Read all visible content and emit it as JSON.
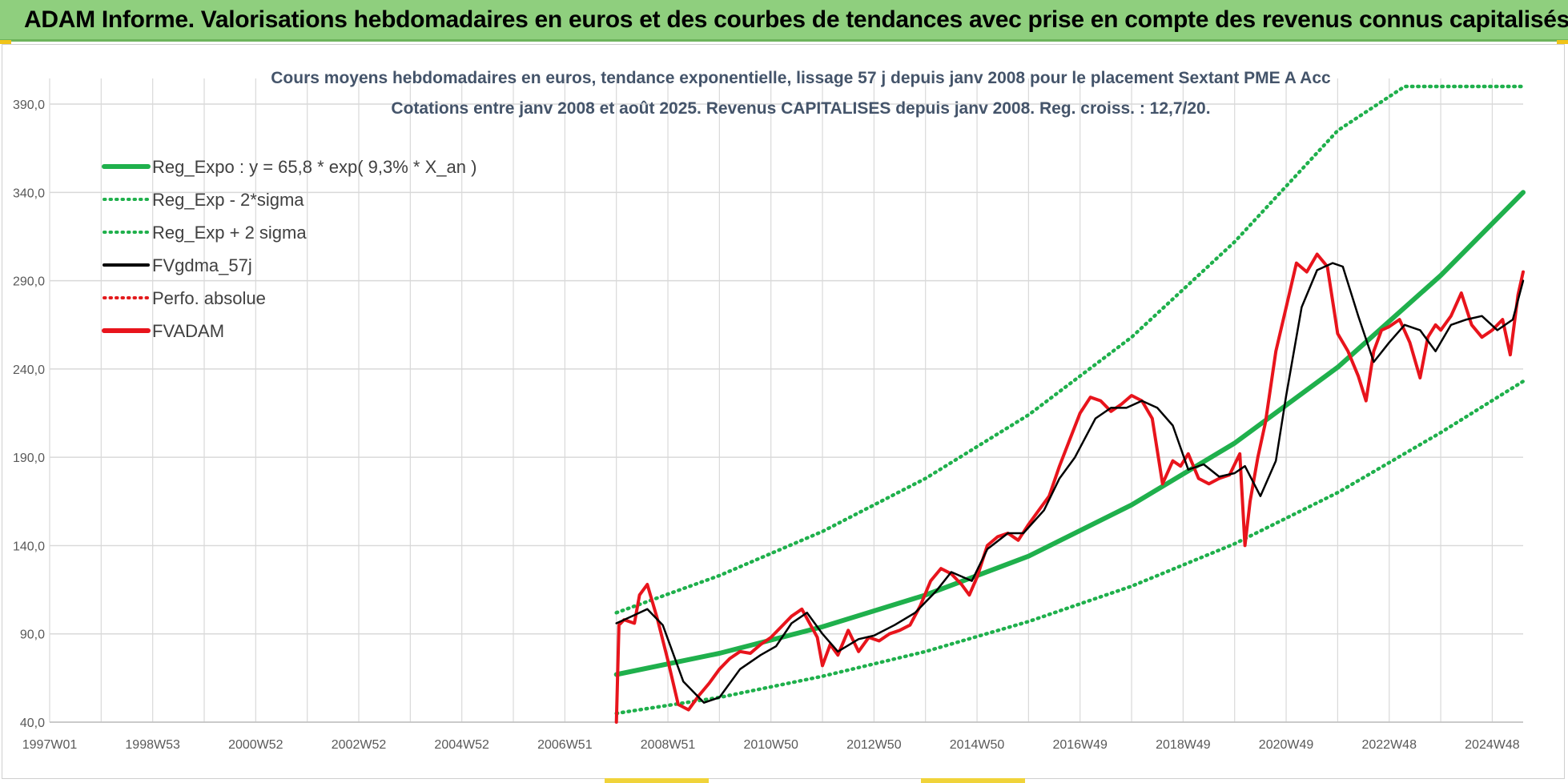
{
  "header": {
    "title": "ADAM Informe. Valorisations hebdomadaires en euros et des courbes de tendances avec prise en compte des revenus connus capitalisés"
  },
  "colors": {
    "header_bg": "#8fcf7e",
    "reg_expo": "#1fb04c",
    "sigma": "#1fb04c",
    "fvgdma": "#000000",
    "perfo": "#e31a1c",
    "fvadam": "#e8141c",
    "grid": "#d9d9d9",
    "title_text": "#44546a"
  },
  "chart_data": {
    "type": "line",
    "title": "Cours moyens hebdomadaires en euros, tendance exponentielle, lissage 57 j depuis janv 2008 pour le placement Sextant PME A Acc",
    "subtitle": "Cotations entre janv 2008 et août 2025. Revenus CAPITALISES depuis janv 2008. Reg. croiss. : 12,7/20.",
    "xlabel": "",
    "ylabel": "",
    "x_range": [
      1997.0,
      2025.6
    ],
    "ylim": [
      40,
      400
    ],
    "y_ticks": [
      "40,0",
      "90,0",
      "140,0",
      "190,0",
      "240,0",
      "290,0",
      "340,0",
      "390,0"
    ],
    "y_tick_values": [
      40,
      90,
      140,
      190,
      240,
      290,
      340,
      390
    ],
    "x_tick_labels": [
      "1997W01",
      "1998W53",
      "2000W52",
      "2002W52",
      "2004W52",
      "2006W51",
      "2008W51",
      "2010W50",
      "2012W50",
      "2014W50",
      "2016W49",
      "2018W49",
      "2020W49",
      "2022W48",
      "2024W48"
    ],
    "x_tick_values": [
      1997.0,
      1999.0,
      2001.0,
      2003.0,
      2005.0,
      2007.0,
      2009.0,
      2011.0,
      2013.0,
      2015.0,
      2017.0,
      2019.0,
      2021.0,
      2023.0,
      2025.0
    ],
    "grid": true,
    "legend_position": "top-left",
    "series": [
      {
        "name": "Reg_Expo : y = 65,8 * exp( 9,3% * X_an )",
        "style": "solid-thick",
        "color": "#1fb04c",
        "x": [
          2008.0,
          2010.0,
          2012.0,
          2014.0,
          2016.0,
          2018.0,
          2020.0,
          2022.0,
          2024.0,
          2025.6
        ],
        "values": [
          67,
          79,
          94,
          112,
          134,
          163,
          198,
          241,
          293,
          340
        ]
      },
      {
        "name": "Reg_Exp - 2*sigma",
        "style": "dotted",
        "color": "#1fb04c",
        "x": [
          2008.0,
          2010.0,
          2012.0,
          2014.0,
          2016.0,
          2018.0,
          2020.0,
          2022.0,
          2024.0,
          2025.6
        ],
        "values": [
          45,
          54,
          66,
          80,
          97,
          117,
          141,
          170,
          204,
          233
        ]
      },
      {
        "name": "Reg_Exp + 2 sigma",
        "style": "dotted",
        "color": "#1fb04c",
        "x": [
          2008.0,
          2010.0,
          2012.0,
          2014.0,
          2016.0,
          2018.0,
          2020.0,
          2022.0,
          2023.3,
          2025.6
        ],
        "values": [
          102,
          123,
          148,
          178,
          214,
          258,
          312,
          375,
          400,
          400
        ]
      },
      {
        "name": "FVgdma_57j",
        "style": "solid",
        "color": "#000000",
        "x": [
          2008.0,
          2008.3,
          2008.6,
          2008.9,
          2009.3,
          2009.7,
          2010.0,
          2010.4,
          2010.8,
          2011.1,
          2011.4,
          2011.7,
          2012.0,
          2012.3,
          2012.7,
          2013.0,
          2013.4,
          2013.8,
          2014.2,
          2014.5,
          2014.9,
          2015.2,
          2015.6,
          2015.9,
          2016.3,
          2016.6,
          2016.9,
          2017.3,
          2017.6,
          2017.9,
          2018.2,
          2018.5,
          2018.8,
          2019.1,
          2019.4,
          2019.7,
          2020.0,
          2020.2,
          2020.5,
          2020.8,
          2021.0,
          2021.3,
          2021.6,
          2021.9,
          2022.1,
          2022.4,
          2022.7,
          2023.0,
          2023.3,
          2023.6,
          2023.9,
          2024.2,
          2024.5,
          2024.8,
          2025.1,
          2025.4,
          2025.6
        ],
        "values": [
          96,
          100,
          104,
          95,
          63,
          51,
          54,
          70,
          78,
          83,
          96,
          102,
          90,
          80,
          87,
          89,
          95,
          102,
          114,
          125,
          120,
          138,
          147,
          147,
          160,
          178,
          190,
          212,
          218,
          218,
          222,
          218,
          208,
          183,
          186,
          179,
          181,
          185,
          168,
          188,
          225,
          275,
          296,
          300,
          298,
          270,
          244,
          255,
          265,
          262,
          250,
          265,
          268,
          270,
          262,
          268,
          290
        ]
      },
      {
        "name": "Perfo. absolue",
        "style": "dotted",
        "color": "#e31a1c",
        "x": [],
        "values": []
      },
      {
        "name": "FVADAM",
        "style": "solid-thick",
        "color": "#e8141c",
        "x": [
          2008.0,
          2008.05,
          2008.15,
          2008.35,
          2008.45,
          2008.6,
          2008.8,
          2009.0,
          2009.2,
          2009.4,
          2009.6,
          2009.8,
          2010.0,
          2010.2,
          2010.4,
          2010.6,
          2010.8,
          2011.0,
          2011.2,
          2011.4,
          2011.6,
          2011.75,
          2011.9,
          2012.0,
          2012.15,
          2012.3,
          2012.5,
          2012.7,
          2012.9,
          2013.1,
          2013.3,
          2013.5,
          2013.7,
          2013.9,
          2014.1,
          2014.3,
          2014.5,
          2014.7,
          2014.85,
          2015.0,
          2015.2,
          2015.4,
          2015.6,
          2015.8,
          2016.0,
          2016.2,
          2016.4,
          2016.6,
          2016.8,
          2017.0,
          2017.2,
          2017.4,
          2017.6,
          2017.8,
          2018.0,
          2018.2,
          2018.4,
          2018.6,
          2018.8,
          2018.95,
          2019.1,
          2019.3,
          2019.5,
          2019.7,
          2019.9,
          2020.1,
          2020.2,
          2020.3,
          2020.45,
          2020.6,
          2020.8,
          2021.0,
          2021.2,
          2021.4,
          2021.6,
          2021.8,
          2022.0,
          2022.2,
          2022.4,
          2022.55,
          2022.7,
          2022.85,
          2023.0,
          2023.2,
          2023.4,
          2023.6,
          2023.75,
          2023.9,
          2024.0,
          2024.2,
          2024.4,
          2024.6,
          2024.8,
          2025.0,
          2025.2,
          2025.35,
          2025.5,
          2025.6
        ],
        "values": [
          40,
          95,
          98,
          96,
          112,
          118,
          98,
          75,
          50,
          47,
          55,
          62,
          70,
          76,
          80,
          79,
          84,
          88,
          94,
          100,
          104,
          96,
          88,
          72,
          84,
          78,
          92,
          80,
          88,
          86,
          90,
          92,
          95,
          106,
          120,
          127,
          124,
          118,
          112,
          122,
          140,
          145,
          147,
          143,
          152,
          160,
          168,
          185,
          200,
          215,
          224,
          222,
          216,
          220,
          225,
          222,
          212,
          175,
          188,
          185,
          192,
          178,
          175,
          178,
          180,
          192,
          140,
          165,
          190,
          210,
          250,
          275,
          300,
          295,
          305,
          298,
          260,
          250,
          236,
          222,
          250,
          262,
          264,
          268,
          255,
          235,
          258,
          265,
          262,
          270,
          283,
          265,
          258,
          262,
          268,
          248,
          282,
          295
        ]
      }
    ]
  }
}
